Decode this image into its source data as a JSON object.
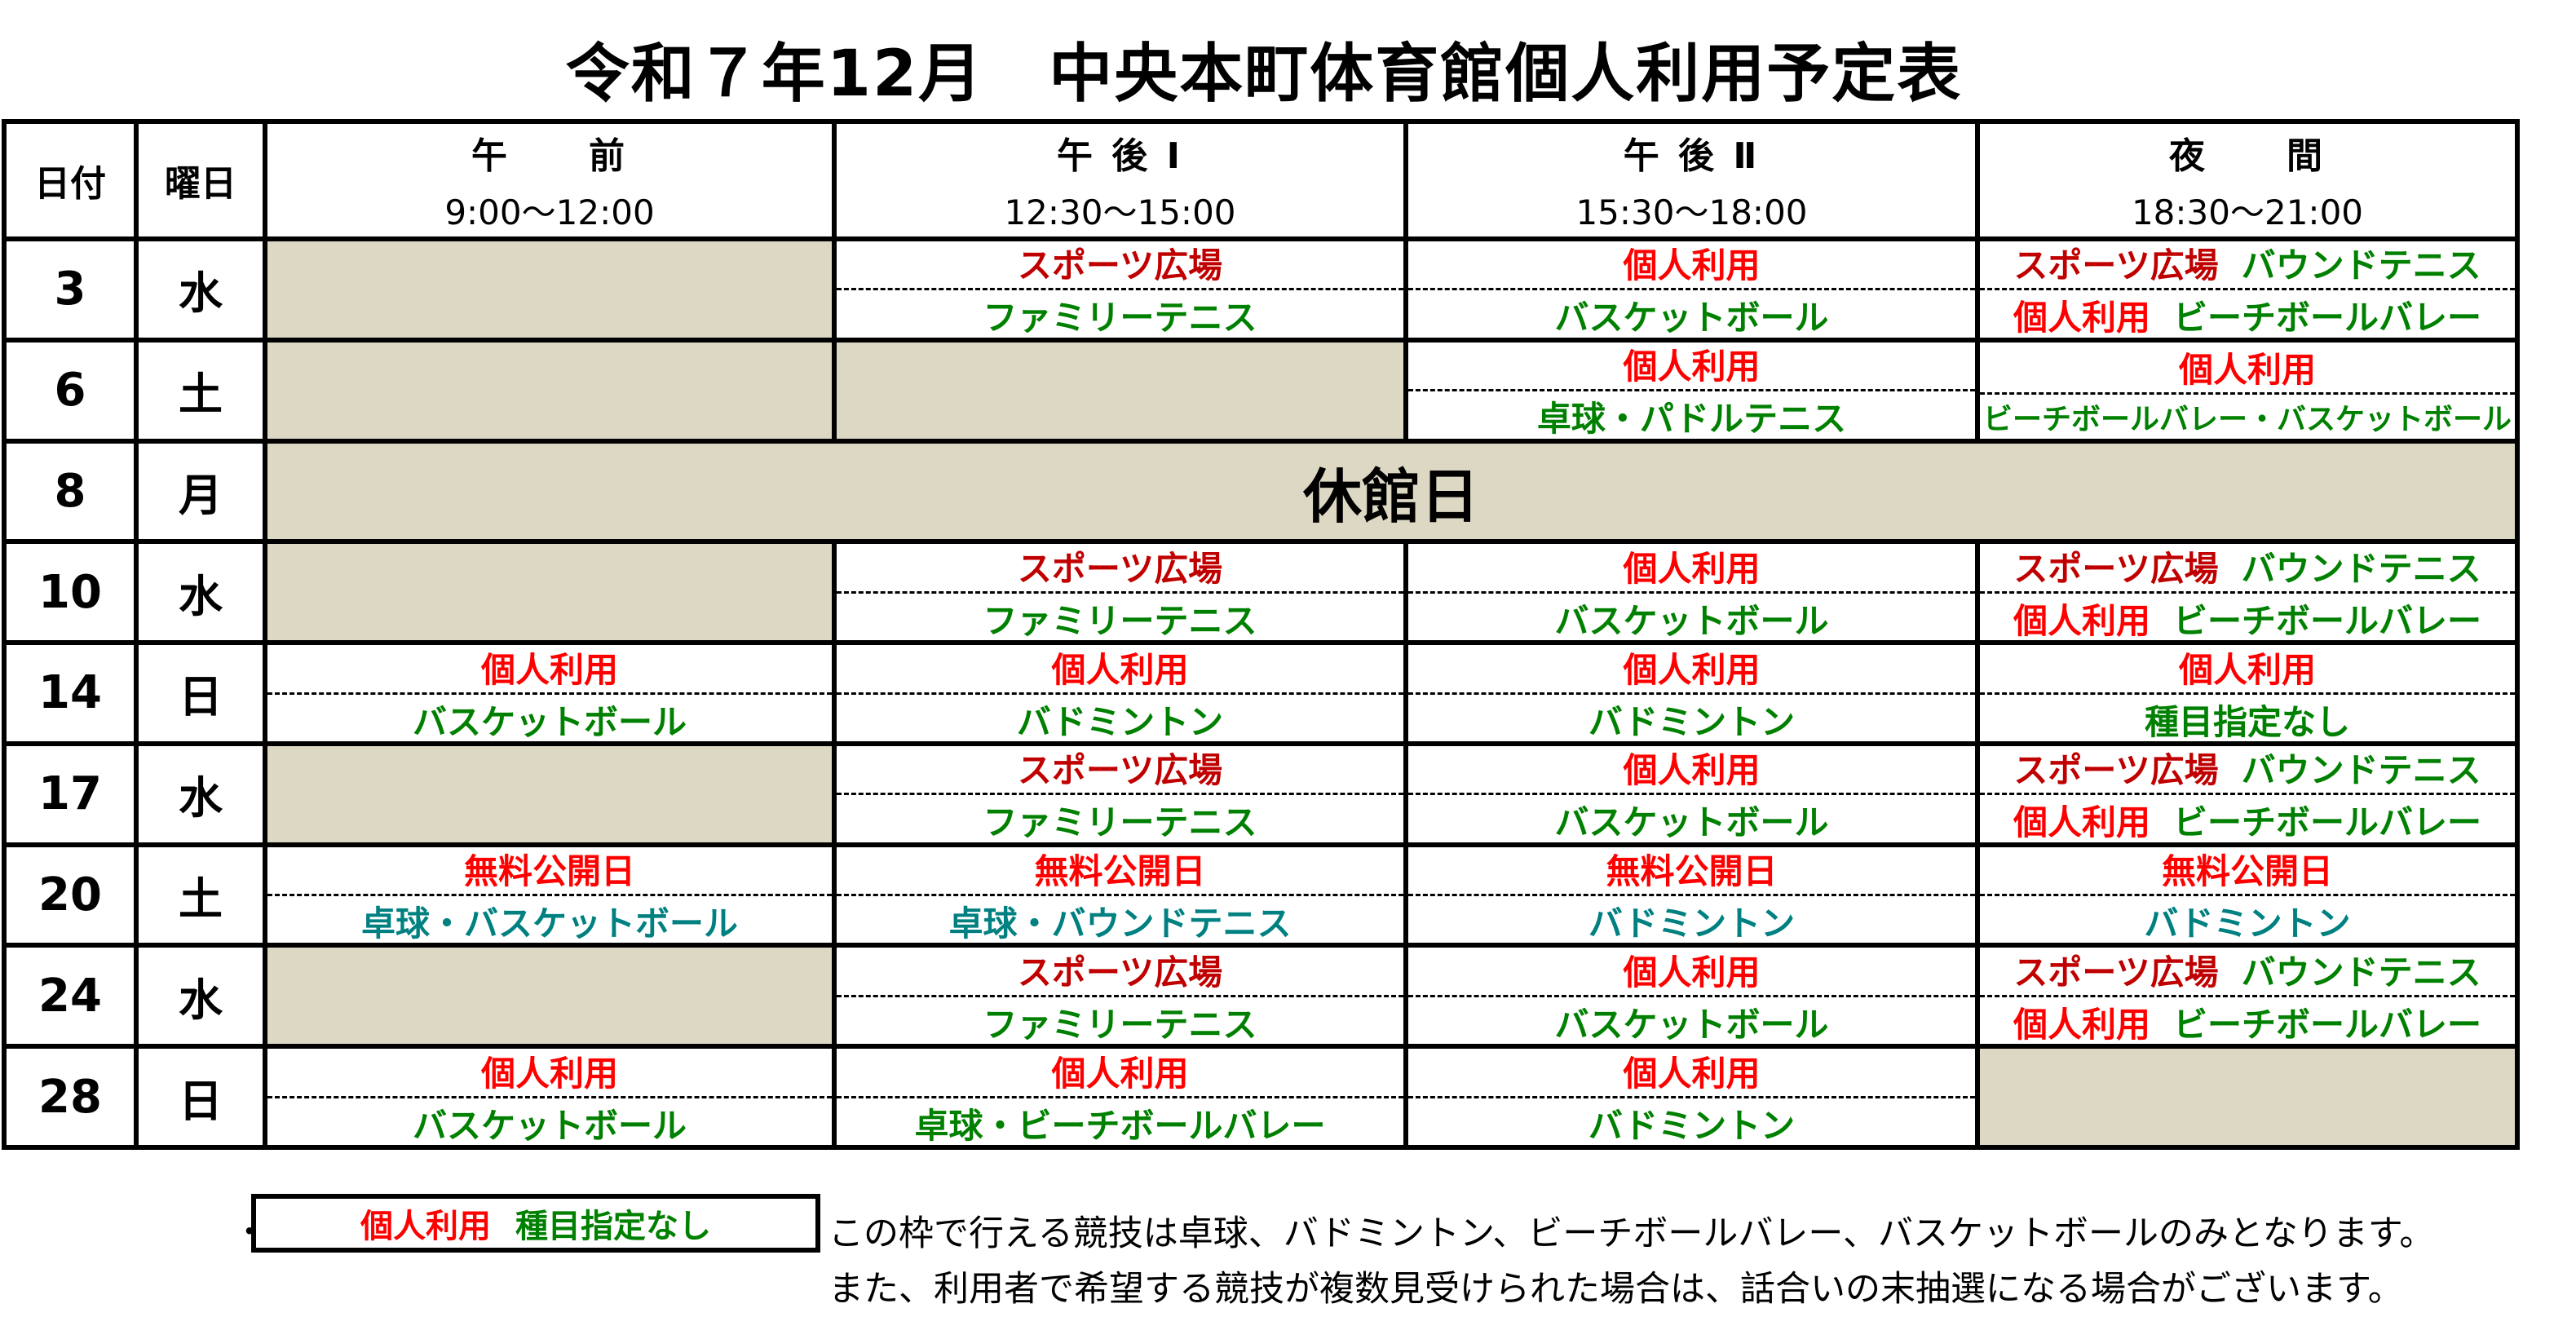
{
  "title": "令和７年12月　中央本町体育館個人利用予定表",
  "colors": {
    "dark_red": "#c00000",
    "red": "#ff0000",
    "green": "#008000",
    "teal": "#008080",
    "shade": "#ddd8c4"
  },
  "header": {
    "date_label": "日付",
    "day_label": "曜日",
    "slots": [
      {
        "name": "午　　前",
        "time": "9:00～12:00"
      },
      {
        "name": "午 後 Ⅰ",
        "time": "12:30～15:00"
      },
      {
        "name": "午 後 Ⅱ",
        "time": "15:30～18:00"
      },
      {
        "name": "夜　　間",
        "time": "18:30～21:00"
      }
    ]
  },
  "rows": [
    {
      "date": "3",
      "day": "水",
      "slots": [
        null,
        {
          "top": [
            {
              "t": "スポーツ広場",
              "c": "dark_red"
            }
          ],
          "bottom": [
            {
              "t": "ファミリーテニス",
              "c": "green"
            }
          ]
        },
        {
          "top": [
            {
              "t": "個人利用",
              "c": "red"
            }
          ],
          "bottom": [
            {
              "t": "バスケットボール",
              "c": "green"
            }
          ]
        },
        {
          "top": [
            {
              "t": "スポーツ広場",
              "c": "dark_red"
            },
            {
              "t": "バウンドテニス",
              "c": "green"
            }
          ],
          "bottom": [
            {
              "t": "個人利用",
              "c": "red"
            },
            {
              "t": "ビーチボールバレー",
              "c": "green"
            }
          ]
        }
      ]
    },
    {
      "date": "6",
      "day": "土",
      "slots": [
        null,
        null,
        {
          "top": [
            {
              "t": "個人利用",
              "c": "red"
            }
          ],
          "bottom": [
            {
              "t": "卓球・パドルテニス",
              "c": "green"
            }
          ]
        },
        {
          "top": [
            {
              "t": "個人利用",
              "c": "red"
            }
          ],
          "bottom": [
            {
              "t": "ビーチボールバレー・バスケットボール",
              "c": "green"
            }
          ],
          "small_bottom": true
        }
      ]
    },
    {
      "date": "8",
      "day": "月",
      "closed": "休館日"
    },
    {
      "date": "10",
      "day": "水",
      "slots": [
        null,
        {
          "top": [
            {
              "t": "スポーツ広場",
              "c": "dark_red"
            }
          ],
          "bottom": [
            {
              "t": "ファミリーテニス",
              "c": "green"
            }
          ]
        },
        {
          "top": [
            {
              "t": "個人利用",
              "c": "red"
            }
          ],
          "bottom": [
            {
              "t": "バスケットボール",
              "c": "green"
            }
          ]
        },
        {
          "top": [
            {
              "t": "スポーツ広場",
              "c": "dark_red"
            },
            {
              "t": "バウンドテニス",
              "c": "green"
            }
          ],
          "bottom": [
            {
              "t": "個人利用",
              "c": "red"
            },
            {
              "t": "ビーチボールバレー",
              "c": "green"
            }
          ]
        }
      ]
    },
    {
      "date": "14",
      "day": "日",
      "slots": [
        {
          "top": [
            {
              "t": "個人利用",
              "c": "red"
            }
          ],
          "bottom": [
            {
              "t": "バスケットボール",
              "c": "green"
            }
          ]
        },
        {
          "top": [
            {
              "t": "個人利用",
              "c": "red"
            }
          ],
          "bottom": [
            {
              "t": "バドミントン",
              "c": "green"
            }
          ]
        },
        {
          "top": [
            {
              "t": "個人利用",
              "c": "red"
            }
          ],
          "bottom": [
            {
              "t": "バドミントン",
              "c": "green"
            }
          ]
        },
        {
          "top": [
            {
              "t": "個人利用",
              "c": "red"
            }
          ],
          "bottom": [
            {
              "t": "種目指定なし",
              "c": "green"
            }
          ]
        }
      ]
    },
    {
      "date": "17",
      "day": "水",
      "slots": [
        null,
        {
          "top": [
            {
              "t": "スポーツ広場",
              "c": "dark_red"
            }
          ],
          "bottom": [
            {
              "t": "ファミリーテニス",
              "c": "green"
            }
          ]
        },
        {
          "top": [
            {
              "t": "個人利用",
              "c": "red"
            }
          ],
          "bottom": [
            {
              "t": "バスケットボール",
              "c": "green"
            }
          ]
        },
        {
          "top": [
            {
              "t": "スポーツ広場",
              "c": "dark_red"
            },
            {
              "t": "バウンドテニス",
              "c": "green"
            }
          ],
          "bottom": [
            {
              "t": "個人利用",
              "c": "red"
            },
            {
              "t": "ビーチボールバレー",
              "c": "green"
            }
          ]
        }
      ]
    },
    {
      "date": "20",
      "day": "土",
      "slots": [
        {
          "top": [
            {
              "t": "無料公開日",
              "c": "red"
            }
          ],
          "bottom": [
            {
              "t": "卓球・バスケットボール",
              "c": "teal"
            }
          ]
        },
        {
          "top": [
            {
              "t": "無料公開日",
              "c": "red"
            }
          ],
          "bottom": [
            {
              "t": "卓球・バウンドテニス",
              "c": "teal"
            }
          ]
        },
        {
          "top": [
            {
              "t": "無料公開日",
              "c": "red"
            }
          ],
          "bottom": [
            {
              "t": "バドミントン",
              "c": "teal"
            }
          ]
        },
        {
          "top": [
            {
              "t": "無料公開日",
              "c": "red"
            }
          ],
          "bottom": [
            {
              "t": "バドミントン",
              "c": "teal"
            }
          ]
        }
      ]
    },
    {
      "date": "24",
      "day": "水",
      "slots": [
        null,
        {
          "top": [
            {
              "t": "スポーツ広場",
              "c": "dark_red"
            }
          ],
          "bottom": [
            {
              "t": "ファミリーテニス",
              "c": "green"
            }
          ]
        },
        {
          "top": [
            {
              "t": "個人利用",
              "c": "red"
            }
          ],
          "bottom": [
            {
              "t": "バスケットボール",
              "c": "green"
            }
          ]
        },
        {
          "top": [
            {
              "t": "スポーツ広場",
              "c": "dark_red"
            },
            {
              "t": "バウンドテニス",
              "c": "green"
            }
          ],
          "bottom": [
            {
              "t": "個人利用",
              "c": "red"
            },
            {
              "t": "ビーチボールバレー",
              "c": "green"
            }
          ]
        }
      ]
    },
    {
      "date": "28",
      "day": "日",
      "slots": [
        {
          "top": [
            {
              "t": "個人利用",
              "c": "red"
            }
          ],
          "bottom": [
            {
              "t": "バスケットボール",
              "c": "green"
            }
          ]
        },
        {
          "top": [
            {
              "t": "個人利用",
              "c": "red"
            }
          ],
          "bottom": [
            {
              "t": "卓球・ビーチボールバレー",
              "c": "green"
            }
          ]
        },
        {
          "top": [
            {
              "t": "個人利用",
              "c": "red"
            }
          ],
          "bottom": [
            {
              "t": "バドミントン",
              "c": "green"
            }
          ]
        },
        null
      ]
    }
  ],
  "legend": {
    "bullet": "・",
    "box": [
      {
        "t": "個人利用",
        "c": "red"
      },
      {
        "t": "種目指定なし",
        "c": "green"
      }
    ],
    "notes": [
      "この枠で行える競技は卓球、バドミントン、ビーチボールバレー、バスケットボールのみとなります。",
      "また、利用者で希望する競技が複数見受けられた場合は、話合いの末抽選になる場合がございます。"
    ]
  }
}
